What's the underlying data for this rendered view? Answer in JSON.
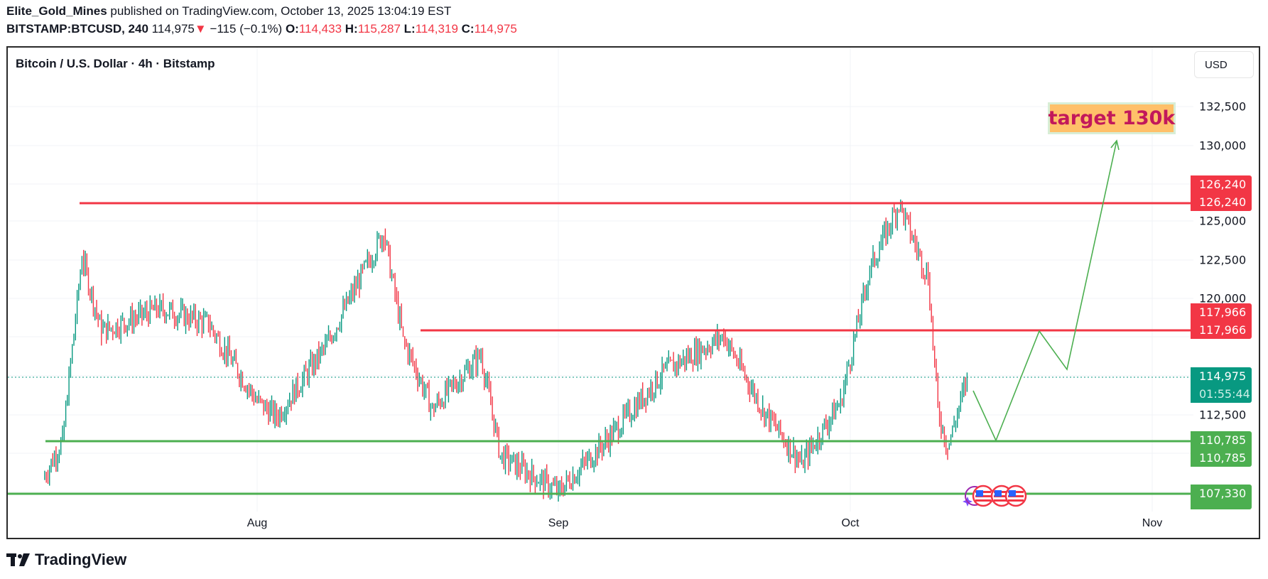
{
  "header": {
    "author": "Elite_Gold_Mines",
    "published_text": " published on TradingView.com, October 13, 2025 13:04:19 EST",
    "symbol": "BITSTAMP:BTCUSD, 240",
    "last_price": "114,975",
    "change_arrow": "▼",
    "change": "−115 (−0.1%)",
    "open_label": "O:",
    "open": "114,433",
    "high_label": "H:",
    "high": "115,287",
    "low_label": "L:",
    "low": "114,319",
    "close_label": "C:",
    "close": "114,975"
  },
  "chart": {
    "legend_title": "Bitcoin / U.S. Dollar · 4h · Bitstamp",
    "currency_button": "USD",
    "annotation_text": "target 130k",
    "countdown": "01:55:44",
    "footer_brand": "TradingView"
  },
  "colors": {
    "up": "#089981",
    "down": "#f23645",
    "resistance": "#f23645",
    "support": "#4caf50",
    "projection": "#4caf50",
    "annotation_bg": "#ffc069",
    "annotation_text": "#c2185b"
  },
  "chart_data": {
    "type": "candlestick",
    "title": "Bitcoin / U.S. Dollar · 4h · Bitstamp",
    "symbol": "BITSTAMP:BTCUSD",
    "interval": "240",
    "xlabel": "",
    "ylabel": "USD",
    "x_ticks": [
      "Aug",
      "Sep",
      "Oct",
      "Nov"
    ],
    "y_ticks": [
      112500,
      120000,
      122500,
      125000,
      130000,
      132500
    ],
    "ylim": [
      105500,
      135000
    ],
    "grid": true,
    "last": {
      "price": 114975,
      "open": 114433,
      "high": 115287,
      "low": 114319,
      "close": 114975,
      "change": -115,
      "change_pct": -0.1
    },
    "approx_price_path": [
      {
        "date": "Jul 10",
        "price": 108500
      },
      {
        "date": "Jul 12",
        "price": 111000
      },
      {
        "date": "Jul 14",
        "price": 122800
      },
      {
        "date": "Jul 16",
        "price": 118000
      },
      {
        "date": "Jul 22",
        "price": 119500
      },
      {
        "date": "Jul 27",
        "price": 118500
      },
      {
        "date": "Aug 1",
        "price": 113500
      },
      {
        "date": "Aug 3",
        "price": 112500
      },
      {
        "date": "Aug 8",
        "price": 117000
      },
      {
        "date": "Aug 14",
        "price": 124400
      },
      {
        "date": "Aug 16",
        "price": 117500
      },
      {
        "date": "Aug 19",
        "price": 113000
      },
      {
        "date": "Aug 24",
        "price": 116500
      },
      {
        "date": "Aug 26",
        "price": 110000
      },
      {
        "date": "Sep 1",
        "price": 107700
      },
      {
        "date": "Sep 6",
        "price": 111000
      },
      {
        "date": "Sep 12",
        "price": 115500
      },
      {
        "date": "Sep 18",
        "price": 117700
      },
      {
        "date": "Sep 22",
        "price": 113000
      },
      {
        "date": "Sep 26",
        "price": 109500
      },
      {
        "date": "Sep 30",
        "price": 113500
      },
      {
        "date": "Oct 3",
        "price": 122000
      },
      {
        "date": "Oct 6",
        "price": 126240
      },
      {
        "date": "Oct 9",
        "price": 121500
      },
      {
        "date": "Oct 10",
        "price": 113000
      },
      {
        "date": "Oct 11",
        "price": 110500
      },
      {
        "date": "Oct 13",
        "price": 114975
      }
    ],
    "horizontal_levels": [
      {
        "name": "resistance-high",
        "price": 126240,
        "color": "#f23645"
      },
      {
        "name": "resistance-mid",
        "price": 117966,
        "color": "#f23645"
      },
      {
        "name": "support-mid",
        "price": 110785,
        "color": "#4caf50"
      },
      {
        "name": "support-low",
        "price": 107330,
        "color": "#4caf50"
      }
    ],
    "projection_path": [
      {
        "date": "Oct 13",
        "price": 114200
      },
      {
        "date": "Oct 17",
        "price": 110785
      },
      {
        "date": "Oct 22",
        "price": 117966
      },
      {
        "date": "Oct 25",
        "price": 115000
      },
      {
        "date": "Oct 30",
        "price": 130000
      }
    ],
    "annotations": [
      {
        "text": "target 130k",
        "price": 131200
      }
    ],
    "price_labels": [
      {
        "value": "126,240",
        "color": "red"
      },
      {
        "value": "126,240",
        "color": "red"
      },
      {
        "value": "117,966",
        "color": "red"
      },
      {
        "value": "117,966",
        "color": "red"
      },
      {
        "value": "114,975",
        "sub": "01:55:44",
        "color": "teal"
      },
      {
        "value": "110,785",
        "color": "green"
      },
      {
        "value": "110,785",
        "color": "green"
      },
      {
        "value": "107,330",
        "color": "green"
      }
    ],
    "y_axis_labels": [
      "132,500",
      "130,000",
      "125,000",
      "122,500",
      "120,000",
      "112,500"
    ]
  }
}
